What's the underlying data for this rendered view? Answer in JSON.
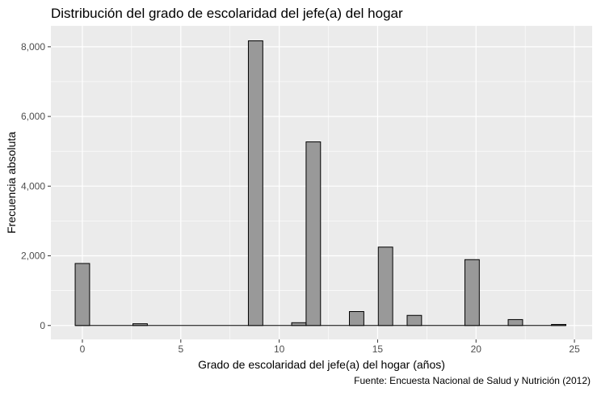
{
  "chart_data": {
    "type": "bar",
    "title": "Distribución del grado de escolaridad del jefe(a) del hogar",
    "xlabel": "Grado de escolaridad del jefe(a) del hogar (años)",
    "ylabel": "Frecuencia absoluta",
    "caption": "Fuente: Encuesta Nacional de Salud y Nutrición (2012)",
    "xlim": [
      -1.6,
      25.9
    ],
    "ylim": [
      -400,
      8600
    ],
    "x_ticks": [
      0,
      5,
      10,
      15,
      20,
      25
    ],
    "x_tick_labels": [
      "0",
      "5",
      "10",
      "15",
      "20",
      "25"
    ],
    "y_ticks": [
      0,
      2000,
      4000,
      6000,
      8000
    ],
    "y_tick_labels": [
      "0",
      "2,000",
      "4,000",
      "6,000",
      "8,000"
    ],
    "bin_width": 0.7333,
    "bins": [
      {
        "start": -0.3667,
        "value": 1780
      },
      {
        "start": 2.5667,
        "value": 50
      },
      {
        "start": 8.4333,
        "value": 8170
      },
      {
        "start": 10.6333,
        "value": 80
      },
      {
        "start": 11.3667,
        "value": 5270
      },
      {
        "start": 13.5667,
        "value": 400
      },
      {
        "start": 15.0333,
        "value": 2250
      },
      {
        "start": 16.5,
        "value": 290
      },
      {
        "start": 19.4333,
        "value": 1890
      },
      {
        "start": 21.6333,
        "value": 170
      },
      {
        "start": 23.8333,
        "value": 30
      }
    ],
    "baseline_range": [
      -0.3667,
      24.5667
    ],
    "grid": true,
    "colors": {
      "panel": "#ebebeb",
      "grid_major": "#ffffff",
      "bar_fill": "#999999",
      "bar_stroke": "#000000",
      "text": "#000000",
      "tick_text": "#4d4d4d"
    }
  }
}
